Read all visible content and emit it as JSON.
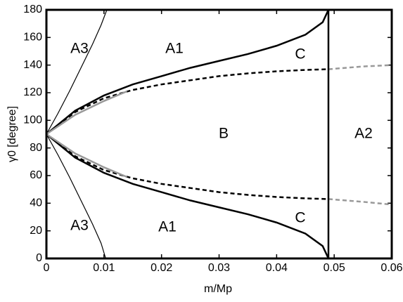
{
  "chart_data": {
    "type": "line",
    "xlabel": "m/Mp",
    "ylabel": "γ0 [degree]",
    "xlim": [
      0,
      0.06
    ],
    "xticks": [
      0,
      0.01,
      0.02,
      0.03,
      0.04,
      0.05,
      0.06
    ],
    "ylim": [
      0,
      180
    ],
    "yticks": [
      0,
      20,
      40,
      60,
      80,
      100,
      120,
      140,
      160,
      180
    ],
    "annotations": [
      "A3",
      "A1",
      "C",
      "B",
      "A2",
      "A3",
      "A1",
      "C"
    ],
    "series": [
      {
        "color": "#000000",
        "width": 1.2,
        "dash": false,
        "x": [
          0,
          0.002,
          0.004,
          0.006,
          0.008,
          0.0095,
          0.0105
        ],
        "values": [
          90,
          105,
          121,
          138,
          155,
          169,
          180
        ]
      },
      {
        "color": "#000000",
        "width": 1.2,
        "dash": false,
        "x": [
          0,
          0.002,
          0.004,
          0.006,
          0.008,
          0.0095,
          0.0103
        ],
        "values": [
          90,
          75,
          59,
          42,
          25,
          11,
          0
        ]
      },
      {
        "color": "#000000",
        "width": 2.5,
        "dash": false,
        "x": [
          0,
          0.005,
          0.01,
          0.015,
          0.02,
          0.025,
          0.03,
          0.035,
          0.04,
          0.045,
          0.048,
          0.049
        ],
        "values": [
          90,
          107,
          118,
          126,
          132,
          138,
          143,
          148,
          154,
          162,
          171,
          180
        ]
      },
      {
        "color": "#000000",
        "width": 2.5,
        "dash": false,
        "x": [
          0,
          0.005,
          0.01,
          0.015,
          0.02,
          0.025,
          0.03,
          0.035,
          0.04,
          0.045,
          0.048,
          0.049
        ],
        "values": [
          90,
          73,
          62,
          54,
          48,
          42,
          37,
          32,
          26,
          18,
          9,
          0
        ]
      },
      {
        "color": "#000000",
        "width": 2.5,
        "dash": true,
        "x": [
          0,
          0.005,
          0.01,
          0.015,
          0.02,
          0.025,
          0.03,
          0.035,
          0.04,
          0.045,
          0.049
        ],
        "values": [
          90,
          106,
          116,
          122,
          126,
          129,
          132,
          134,
          135.5,
          136.5,
          137
        ]
      },
      {
        "color": "#000000",
        "width": 2.5,
        "dash": true,
        "x": [
          0,
          0.005,
          0.01,
          0.015,
          0.02,
          0.025,
          0.03,
          0.035,
          0.04,
          0.045,
          0.049
        ],
        "values": [
          90,
          74,
          64,
          58,
          54,
          51,
          48,
          46,
          44.5,
          43.5,
          43
        ]
      },
      {
        "color": "#999999",
        "width": 2.5,
        "dash": true,
        "x": [
          0.049,
          0.055,
          0.06
        ],
        "values": [
          137,
          139,
          140
        ]
      },
      {
        "color": "#999999",
        "width": 2.5,
        "dash": true,
        "x": [
          0.049,
          0.055,
          0.06
        ],
        "values": [
          43,
          41,
          39
        ]
      },
      {
        "color": "#999999",
        "width": 2.5,
        "dash": false,
        "x": [
          0,
          0.005,
          0.01,
          0.014
        ],
        "values": [
          90,
          104,
          114,
          121
        ]
      },
      {
        "color": "#999999",
        "width": 2.5,
        "dash": false,
        "x": [
          0,
          0.005,
          0.01,
          0.014
        ],
        "values": [
          90,
          76,
          66,
          59
        ]
      },
      {
        "color": "#000000",
        "width": 2.5,
        "dash": false,
        "x": [
          0.049,
          0.049
        ],
        "values": [
          0,
          180
        ]
      }
    ]
  }
}
